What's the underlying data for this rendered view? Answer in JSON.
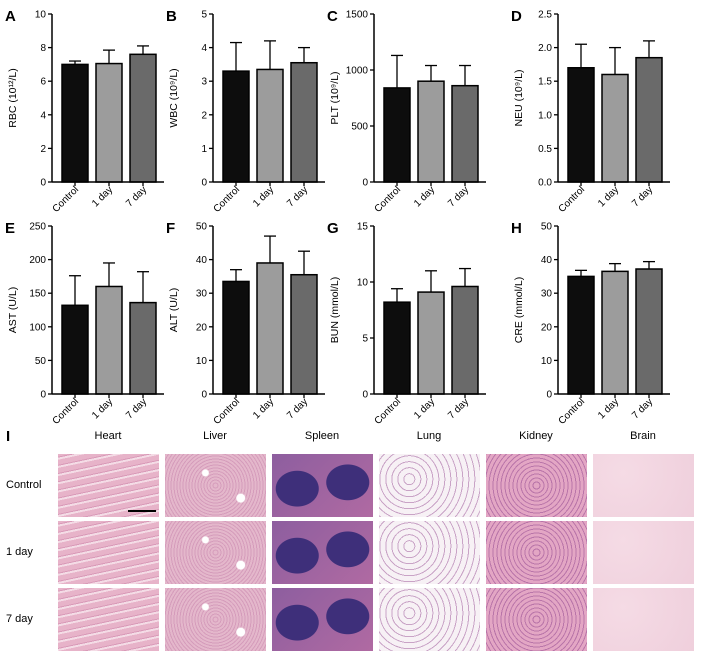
{
  "chart_data": [
    {
      "id": "A",
      "type": "bar",
      "ylabel": "RBC (10¹²/L)",
      "ylim": [
        0,
        10
      ],
      "yticks": [
        0,
        2,
        4,
        6,
        8,
        10
      ],
      "categories": [
        "Control",
        "1 day",
        "7 day"
      ],
      "values": [
        7.0,
        7.05,
        7.6
      ],
      "errors": [
        0.2,
        0.8,
        0.5
      ],
      "colors": [
        "#0d0d0d",
        "#9c9c9c",
        "#6a6a6a"
      ]
    },
    {
      "id": "B",
      "type": "bar",
      "ylabel": "WBC (10⁹/L)",
      "ylim": [
        0,
        5
      ],
      "yticks": [
        0,
        1,
        2,
        3,
        4,
        5
      ],
      "categories": [
        "Control",
        "1 day",
        "7 day"
      ],
      "values": [
        3.3,
        3.35,
        3.55
      ],
      "errors": [
        0.85,
        0.85,
        0.45
      ],
      "colors": [
        "#0d0d0d",
        "#9c9c9c",
        "#6a6a6a"
      ]
    },
    {
      "id": "C",
      "type": "bar",
      "ylabel": "PLT (10⁹/L)",
      "ylim": [
        0,
        1500
      ],
      "yticks": [
        0,
        500,
        1000,
        1500
      ],
      "categories": [
        "Control",
        "1 day",
        "7 day"
      ],
      "values": [
        840,
        900,
        860
      ],
      "errors": [
        290,
        140,
        180
      ],
      "colors": [
        "#0d0d0d",
        "#9c9c9c",
        "#6a6a6a"
      ]
    },
    {
      "id": "D",
      "type": "bar",
      "ylabel": "NEU (10⁹/L)",
      "ylim": [
        0,
        2.5
      ],
      "yticks": [
        0.0,
        0.5,
        1.0,
        1.5,
        2.0,
        2.5
      ],
      "tickDecimals": 1,
      "categories": [
        "Control",
        "1 day",
        "7 day"
      ],
      "values": [
        1.7,
        1.6,
        1.85
      ],
      "errors": [
        0.35,
        0.4,
        0.25
      ],
      "colors": [
        "#0d0d0d",
        "#9c9c9c",
        "#6a6a6a"
      ]
    },
    {
      "id": "E",
      "type": "bar",
      "ylabel": "AST (U/L)",
      "ylim": [
        0,
        250
      ],
      "yticks": [
        0,
        50,
        100,
        150,
        200,
        250
      ],
      "categories": [
        "Control",
        "1 day",
        "7 day"
      ],
      "values": [
        132,
        160,
        136
      ],
      "errors": [
        44,
        35,
        46
      ],
      "colors": [
        "#0d0d0d",
        "#9c9c9c",
        "#6a6a6a"
      ]
    },
    {
      "id": "F",
      "type": "bar",
      "ylabel": "ALT (U/L)",
      "ylim": [
        0,
        50
      ],
      "yticks": [
        0,
        10,
        20,
        30,
        40,
        50
      ],
      "categories": [
        "Control",
        "1 day",
        "7 day"
      ],
      "values": [
        33.5,
        39,
        35.5
      ],
      "errors": [
        3.5,
        8,
        7
      ],
      "colors": [
        "#0d0d0d",
        "#9c9c9c",
        "#6a6a6a"
      ]
    },
    {
      "id": "G",
      "type": "bar",
      "ylabel": "BUN (mmol/L)",
      "ylim": [
        0,
        15
      ],
      "yticks": [
        0,
        5,
        10,
        15
      ],
      "categories": [
        "Control",
        "1 day",
        "7 day"
      ],
      "values": [
        8.2,
        9.1,
        9.6
      ],
      "errors": [
        1.2,
        1.9,
        1.6
      ],
      "colors": [
        "#0d0d0d",
        "#9c9c9c",
        "#6a6a6a"
      ]
    },
    {
      "id": "H",
      "type": "bar",
      "ylabel": "CRE (mmol/L)",
      "ylim": [
        0,
        50
      ],
      "yticks": [
        0,
        10,
        20,
        30,
        40,
        50
      ],
      "categories": [
        "Control",
        "1 day",
        "7 day"
      ],
      "values": [
        35,
        36.5,
        37.2
      ],
      "errors": [
        1.8,
        2.3,
        2.2
      ],
      "colors": [
        "#0d0d0d",
        "#9c9c9c",
        "#6a6a6a"
      ]
    }
  ],
  "histology": {
    "panel_letter": "I",
    "organs": [
      "Heart",
      "Liver",
      "Spleen",
      "Lung",
      "Kidney",
      "Brain"
    ],
    "groups": [
      "Control",
      "1 day",
      "7 day"
    ],
    "organ_colors": {
      "Heart": "#e7b3c9",
      "Liver": "#e4b7cb",
      "Spleen": "#6c4b8e",
      "Lung": "#f3eaf1",
      "Kidney": "#d98fb6",
      "Brain": "#efcfdc"
    }
  }
}
